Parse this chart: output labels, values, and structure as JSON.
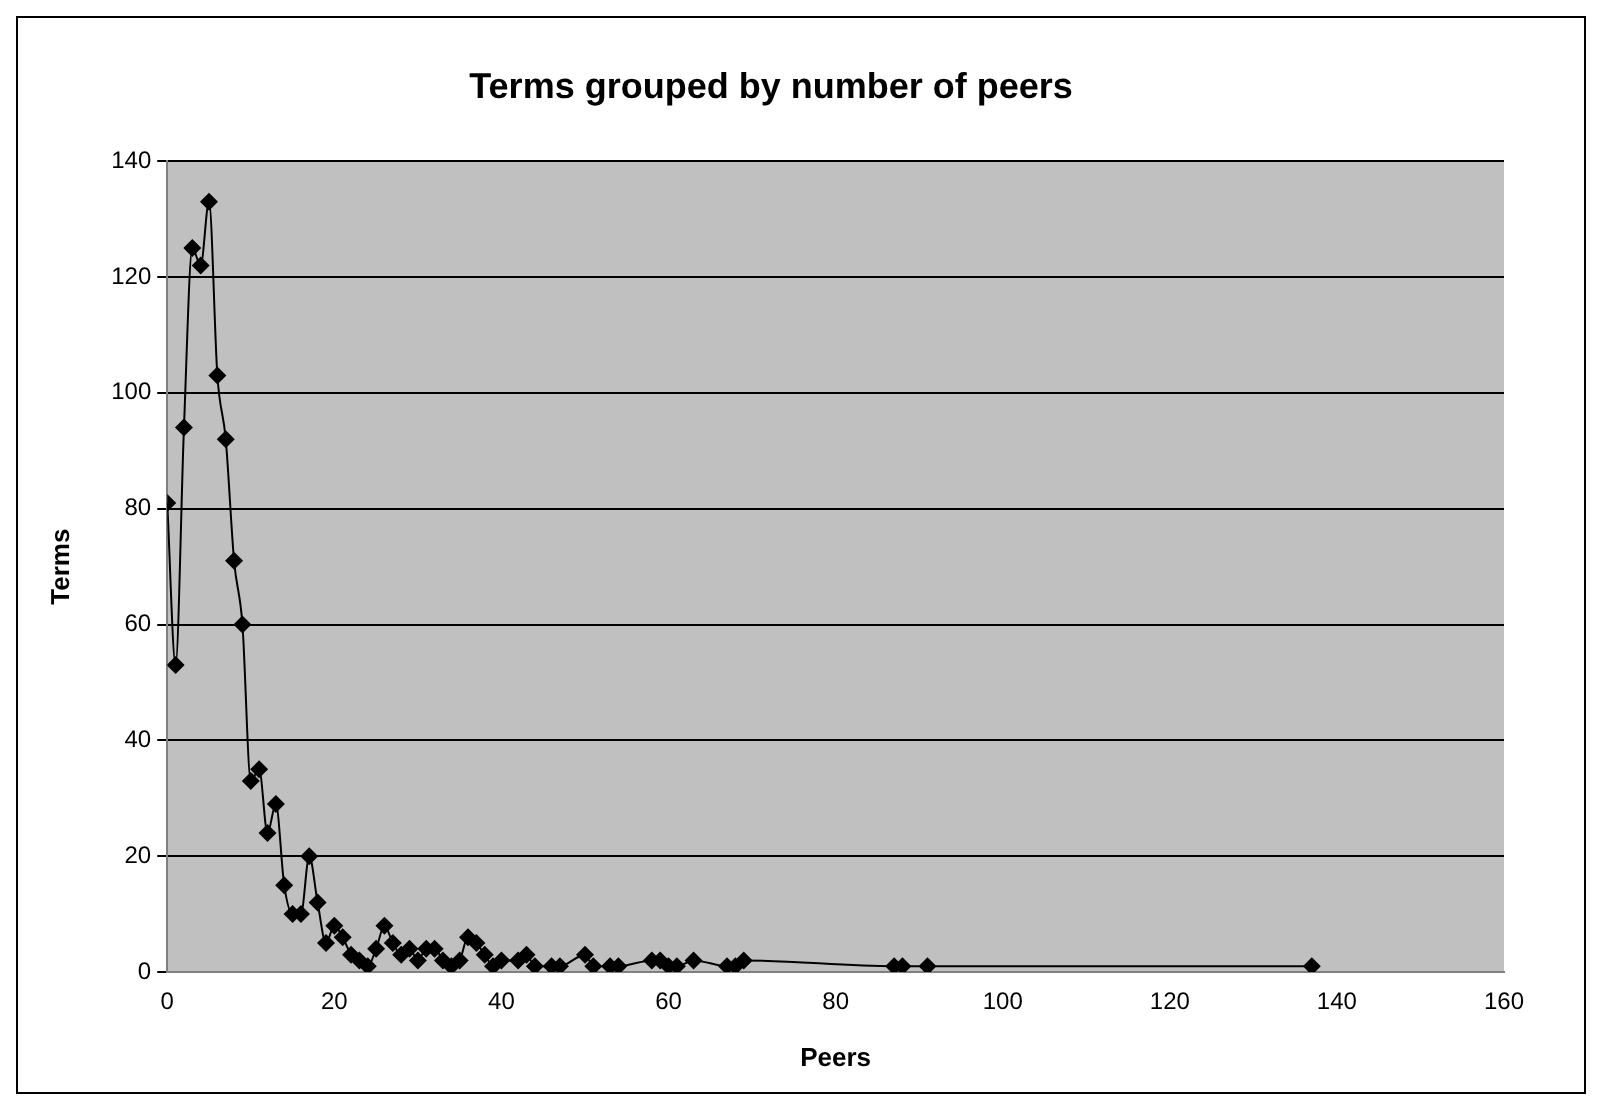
{
  "chart_data": {
    "type": "line",
    "title": "Terms grouped by number of peers",
    "xlabel": "Peers",
    "ylabel": "Terms",
    "x": [
      0,
      1,
      2,
      3,
      4,
      5,
      6,
      7,
      8,
      9,
      10,
      11,
      12,
      13,
      14,
      15,
      16,
      17,
      18,
      19,
      20,
      21,
      22,
      23,
      24,
      25,
      26,
      27,
      28,
      29,
      30,
      31,
      32,
      33,
      34,
      35,
      36,
      37,
      38,
      39,
      40,
      42,
      43,
      44,
      46,
      47,
      50,
      51,
      53,
      54,
      58,
      59,
      60,
      61,
      63,
      67,
      68,
      69,
      87,
      88,
      91,
      137
    ],
    "series": [
      {
        "color": "#000000",
        "values": [
          81,
          53,
          94,
          125,
          122,
          133,
          103,
          92,
          71,
          60,
          33,
          35,
          24,
          29,
          15,
          10,
          10,
          20,
          12,
          5,
          8,
          6,
          3,
          2,
          1,
          4,
          8,
          5,
          3,
          4,
          2,
          4,
          4,
          2,
          1,
          2,
          6,
          5,
          3,
          1,
          2,
          2,
          3,
          1,
          1,
          1,
          3,
          1,
          1,
          1,
          2,
          2,
          1,
          1,
          2,
          1,
          1,
          2,
          1,
          1,
          1,
          1
        ]
      }
    ],
    "xlim": [
      0,
      160
    ],
    "xticks": [
      0,
      20,
      40,
      60,
      80,
      100,
      120,
      140,
      160
    ],
    "ylim": [
      0,
      140
    ],
    "yticks": [
      0,
      20,
      40,
      60,
      80,
      100,
      120,
      140
    ],
    "grid": "y",
    "legend": false,
    "marker": "diamond",
    "line_style": "solid"
  }
}
